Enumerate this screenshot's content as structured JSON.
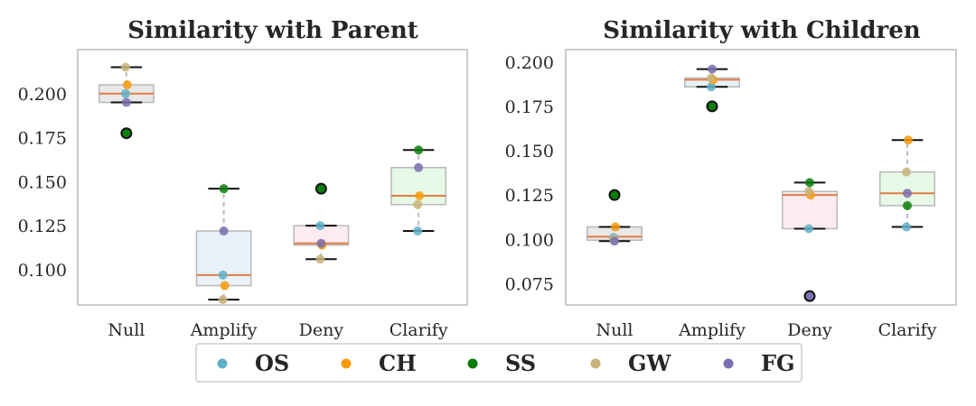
{
  "legend": {
    "items": [
      {
        "key": "OS",
        "label": "OS",
        "color": "#62b0c8"
      },
      {
        "key": "CH",
        "label": "CH",
        "color": "#f59b0b"
      },
      {
        "key": "SS",
        "label": "SS",
        "color": "#0a7d0a"
      },
      {
        "key": "GW",
        "label": "GW",
        "color": "#c8b47a"
      },
      {
        "key": "FG",
        "label": "FG",
        "color": "#7a6fb0"
      }
    ]
  },
  "chart_data": [
    {
      "type": "box",
      "title": "Similarity with Parent",
      "categories": [
        "Null",
        "Amplify",
        "Deny",
        "Clarify"
      ],
      "ylim": [
        0.08,
        0.225
      ],
      "yticks": [
        "0.100",
        "0.125",
        "0.150",
        "0.175",
        "0.200"
      ],
      "grid": false,
      "box_colors": [
        "#d9d9d9",
        "#dbe8f6",
        "#fcdde5",
        "#d5f5d5"
      ],
      "boxes": [
        {
          "q1": 0.195,
          "median": 0.2,
          "q3": 0.205,
          "whisker_low": 0.195,
          "whisker_high": 0.215,
          "outliers": [
            0.1775
          ]
        },
        {
          "q1": 0.091,
          "median": 0.097,
          "q3": 0.122,
          "whisker_low": 0.083,
          "whisker_high": 0.146,
          "outliers": []
        },
        {
          "q1": 0.114,
          "median": 0.115,
          "q3": 0.125,
          "whisker_low": 0.106,
          "whisker_high": 0.125,
          "outliers": [
            0.146
          ]
        },
        {
          "q1": 0.137,
          "median": 0.142,
          "q3": 0.158,
          "whisker_low": 0.122,
          "whisker_high": 0.168,
          "outliers": []
        }
      ],
      "series": [
        {
          "key": "OS",
          "values": [
            0.2,
            0.097,
            0.125,
            0.122
          ]
        },
        {
          "key": "CH",
          "values": [
            0.205,
            0.091,
            0.114,
            0.142
          ]
        },
        {
          "key": "SS",
          "values": [
            0.1775,
            0.146,
            0.146,
            0.168
          ]
        },
        {
          "key": "GW",
          "values": [
            0.215,
            0.083,
            0.106,
            0.137
          ]
        },
        {
          "key": "FG",
          "values": [
            0.195,
            0.122,
            0.115,
            0.158
          ]
        }
      ]
    },
    {
      "type": "box",
      "title": "Similarity with Children",
      "categories": [
        "Null",
        "Amplify",
        "Deny",
        "Clarify"
      ],
      "ylim": [
        0.063,
        0.207
      ],
      "yticks": [
        "0.075",
        "0.100",
        "0.125",
        "0.150",
        "0.175",
        "0.200"
      ],
      "grid": false,
      "box_colors": [
        "#d9d9d9",
        "#dbe8f6",
        "#fcdde5",
        "#d5f5d5"
      ],
      "boxes": [
        {
          "q1": 0.0995,
          "median": 0.1015,
          "q3": 0.107,
          "whisker_low": 0.099,
          "whisker_high": 0.107,
          "outliers": [
            0.125
          ]
        },
        {
          "q1": 0.186,
          "median": 0.19,
          "q3": 0.191,
          "whisker_low": 0.186,
          "whisker_high": 0.196,
          "outliers": [
            0.175
          ]
        },
        {
          "q1": 0.106,
          "median": 0.125,
          "q3": 0.127,
          "whisker_low": 0.106,
          "whisker_high": 0.132,
          "outliers": [
            0.068
          ]
        },
        {
          "q1": 0.119,
          "median": 0.126,
          "q3": 0.138,
          "whisker_low": 0.107,
          "whisker_high": 0.156,
          "outliers": []
        }
      ],
      "series": [
        {
          "key": "OS",
          "values": [
            0.101,
            0.186,
            0.106,
            0.107
          ]
        },
        {
          "key": "CH",
          "values": [
            0.107,
            0.19,
            0.125,
            0.156
          ]
        },
        {
          "key": "SS",
          "values": [
            0.125,
            0.175,
            0.132,
            0.119
          ]
        },
        {
          "key": "GW",
          "values": [
            0.1,
            0.191,
            0.127,
            0.138
          ]
        },
        {
          "key": "FG",
          "values": [
            0.099,
            0.196,
            0.068,
            0.126
          ]
        }
      ]
    }
  ]
}
